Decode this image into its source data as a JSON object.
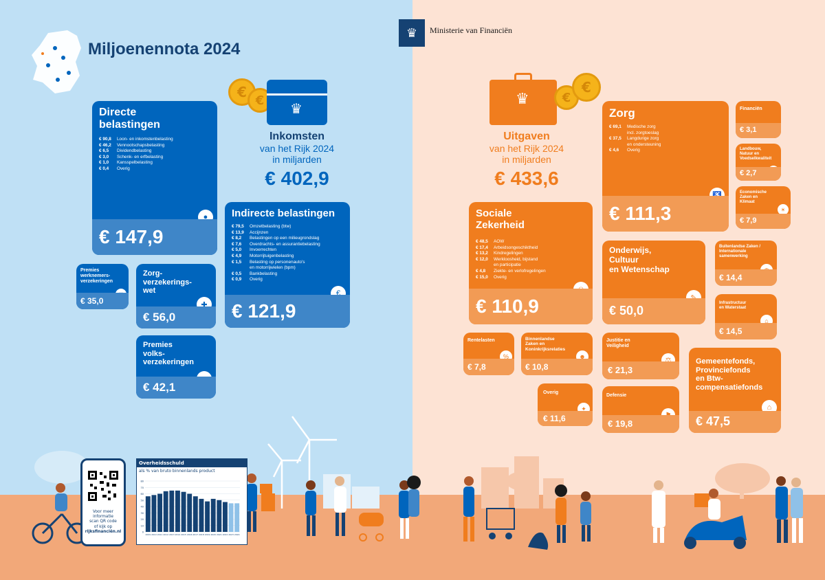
{
  "header": {
    "title": "Miljoenennota 2024",
    "ministry": "Ministerie van Financiën"
  },
  "income": {
    "title": "Inkomsten",
    "subtitle_1": "van het Rijk 2024",
    "subtitle_2": "in miljarden",
    "total": "€ 402,9",
    "cards": {
      "direct": {
        "title_1": "Directe",
        "title_2": "belastingen",
        "value": "€ 147,9",
        "items": [
          {
            "amount": "€ 90,8",
            "label": "Loon- en inkomstenbelasting"
          },
          {
            "amount": "€ 46,2",
            "label": "Vennootschapsbelasting"
          },
          {
            "amount": "€ 6,5",
            "label": "Dividendbelasting"
          },
          {
            "amount": "€ 3,0",
            "label": "Schenk- en erfbelasting"
          },
          {
            "amount": "€ 1,0",
            "label": "Kansspelbelasting"
          },
          {
            "amount": "€ 0,4",
            "label": "Overig"
          }
        ]
      },
      "indirect": {
        "title": "Indirecte belastingen",
        "value": "€ 121,9",
        "items": [
          {
            "amount": "€ 79,5",
            "label": "Omzetbelasting (btw)"
          },
          {
            "amount": "€ 13,9",
            "label": "Accijnzen"
          },
          {
            "amount": "€ 8,2",
            "label": "Belastingen op een milieugrondslag"
          },
          {
            "amount": "€ 7,6",
            "label": "Overdrachts- en assurantiebelasting"
          },
          {
            "amount": "€ 5,0",
            "label": "Invoerrechten"
          },
          {
            "amount": "€ 4,9",
            "label": "Motorrijtuigenbelasting"
          },
          {
            "amount": "€ 1,5",
            "label": "Belasting op personenauto's"
          },
          {
            "amount": "",
            "label": "en motorrijwielen (bpm)"
          },
          {
            "amount": "€ 0,5",
            "label": "Bankbelasting"
          },
          {
            "amount": "€ 0,9",
            "label": "Overig"
          }
        ]
      },
      "werknemers": {
        "title_1": "Premies",
        "title_2": "werknemers-",
        "title_3": "verzekeringen",
        "value": "€ 35,0"
      },
      "zorg": {
        "title_1": "Zorg-",
        "title_2": "verzekerings-",
        "title_3": "wet",
        "value": "€ 56,0"
      },
      "volks": {
        "title_1": "Premies",
        "title_2": "volks-",
        "title_3": "verzekeringen",
        "value": "€ 42,1"
      }
    }
  },
  "expenses": {
    "title": "Uitgaven",
    "subtitle_1": "van het Rijk 2024",
    "subtitle_2": "in miljarden",
    "total": "€ 433,6",
    "cards": {
      "zorg": {
        "title": "Zorg",
        "value": "€ 111,3",
        "items": [
          {
            "amount": "€ 69,1",
            "label": "Medische zorg"
          },
          {
            "amount": "",
            "label": "incl. zorgtoeslag"
          },
          {
            "amount": "€ 37,5",
            "label": "Langdurige zorg"
          },
          {
            "amount": "",
            "label": "en ondersteuning"
          },
          {
            "amount": "€ 4,6",
            "label": "Overig"
          }
        ]
      },
      "sociale": {
        "title_1": "Sociale",
        "title_2": "Zekerheid",
        "value": "€ 110,9",
        "items": [
          {
            "amount": "€ 48,5",
            "label": "AOW"
          },
          {
            "amount": "€ 17,4",
            "label": "Arbeidsongeschiktheid"
          },
          {
            "amount": "€ 13,2",
            "label": "Kindregelingen"
          },
          {
            "amount": "€ 12,0",
            "label": "Werkloosheid, bijstand"
          },
          {
            "amount": "",
            "label": "en participatie"
          },
          {
            "amount": "€ 4,8",
            "label": "Ziekte- en verlofregelingen"
          },
          {
            "amount": "€ 15,0",
            "label": "Overig"
          }
        ]
      },
      "onderwijs": {
        "title_1": "Onderwijs,",
        "title_2": "Cultuur",
        "title_3": "en Wetenschap",
        "value": "€ 50,0"
      },
      "financien": {
        "title": "Financiën",
        "value": "€ 3,1"
      },
      "landbouw": {
        "title_1": "Landbouw,",
        "title_2": "Natuur en",
        "title_3": "Voedselkwaliteit",
        "value": "€ 2,7"
      },
      "economische": {
        "title_1": "Economische",
        "title_2": "Zaken en",
        "title_3": "Klimaat",
        "value": "€ 7,9"
      },
      "buitenlandse": {
        "title_1": "Buitenlandse Zaken /",
        "title_2": "Internationale",
        "title_3": "samenwerking",
        "value": "€ 14,4"
      },
      "infrastructuur": {
        "title_1": "Infrastructuur",
        "title_2": "en Waterstaat",
        "value": "€ 14,5"
      },
      "rentelasten": {
        "title": "Rentelasten",
        "value": "€ 7,8"
      },
      "binnenlandse": {
        "title_1": "Binnenlandse",
        "title_2": "Zaken en",
        "title_3": "Koninkrijksrelaties",
        "value": "€ 10,8"
      },
      "justitie": {
        "title_1": "Justitie en",
        "title_2": "Veiligheid",
        "value": "€ 21,3"
      },
      "gemeentefonds": {
        "title_1": "Gemeentefonds,",
        "title_2": "Provinciefonds",
        "title_3": "en Btw-",
        "title_4": "compensatiefonds",
        "value": "€ 47,5"
      },
      "overig": {
        "title": "Overig",
        "value": "€ 11,6"
      },
      "defensie": {
        "title": "Defensie",
        "value": "€ 19,8"
      }
    }
  },
  "qr": {
    "line_1": "Voor meer",
    "line_2": "informatie",
    "line_3": "scan QR code",
    "line_4": "of kijk op",
    "line_5": "rijksfinanciën.nl"
  },
  "chart_data": {
    "type": "bar",
    "title": "Overheidsschuld",
    "subtitle": "als % van bruto binnenlands product",
    "categories": [
      "2009",
      "2010",
      "2011",
      "2012",
      "2013",
      "2014",
      "2015",
      "2016",
      "2017",
      "2018",
      "2019",
      "2020",
      "2021",
      "2022",
      "2023",
      "2024"
    ],
    "values": [
      56,
      58,
      60,
      64,
      65,
      65,
      63,
      60,
      56,
      52,
      48,
      52,
      50,
      47,
      45,
      45
    ],
    "ylim": [
      0,
      80
    ],
    "yticks": [
      "0",
      "10",
      "20",
      "30",
      "40",
      "50",
      "60",
      "70",
      "80"
    ],
    "colors": {
      "bar": "#154273",
      "bar_highlight": "#8fc1e8"
    }
  },
  "colors": {
    "blue": "#0065bd",
    "dark_blue": "#154273",
    "orange": "#f07d1e",
    "left_bg": "#bfe0f5",
    "right_bg": "#fde3d4"
  }
}
